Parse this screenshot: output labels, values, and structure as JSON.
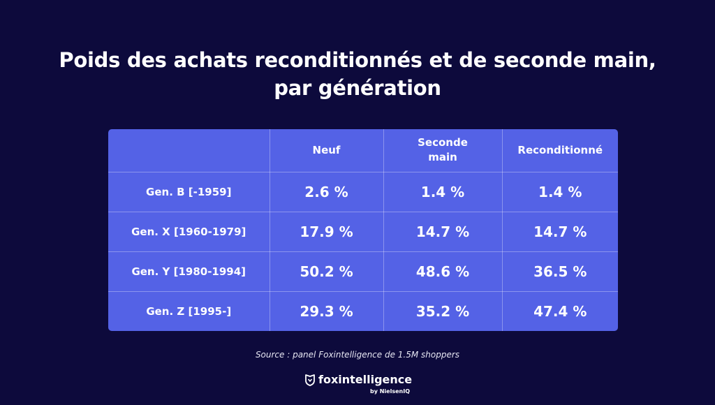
{
  "title": {
    "line1": "Poids des achats reconditionnés et de seconde main,",
    "line2": "par génération"
  },
  "chart_data": {
    "type": "table",
    "columns": [
      "",
      "Neuf",
      "Seconde main",
      "Reconditionné"
    ],
    "rows": [
      {
        "label": "Gen. B [-1959]",
        "values": [
          "2.6 %",
          "1.4 %",
          "1.4 %"
        ]
      },
      {
        "label": "Gen. X [1960-1979]",
        "values": [
          "17.9 %",
          "14.7 %",
          "14.7 %"
        ]
      },
      {
        "label": "Gen. Y [1980-1994]",
        "values": [
          "50.2 %",
          "48.6 %",
          "36.5 %"
        ]
      },
      {
        "label": "Gen. Z [1995-]",
        "values": [
          "29.3 %",
          "35.2 %",
          "47.4 %"
        ]
      }
    ]
  },
  "source": "Source : panel Foxintelligence de 1.5M shoppers",
  "brand": {
    "name": "foxintelligence",
    "sub": "by NielsenIQ",
    "icon": "fox-shield-icon"
  },
  "colors": {
    "background": "#0d0a3c",
    "table": "#5462e6",
    "text": "#ffffff"
  }
}
